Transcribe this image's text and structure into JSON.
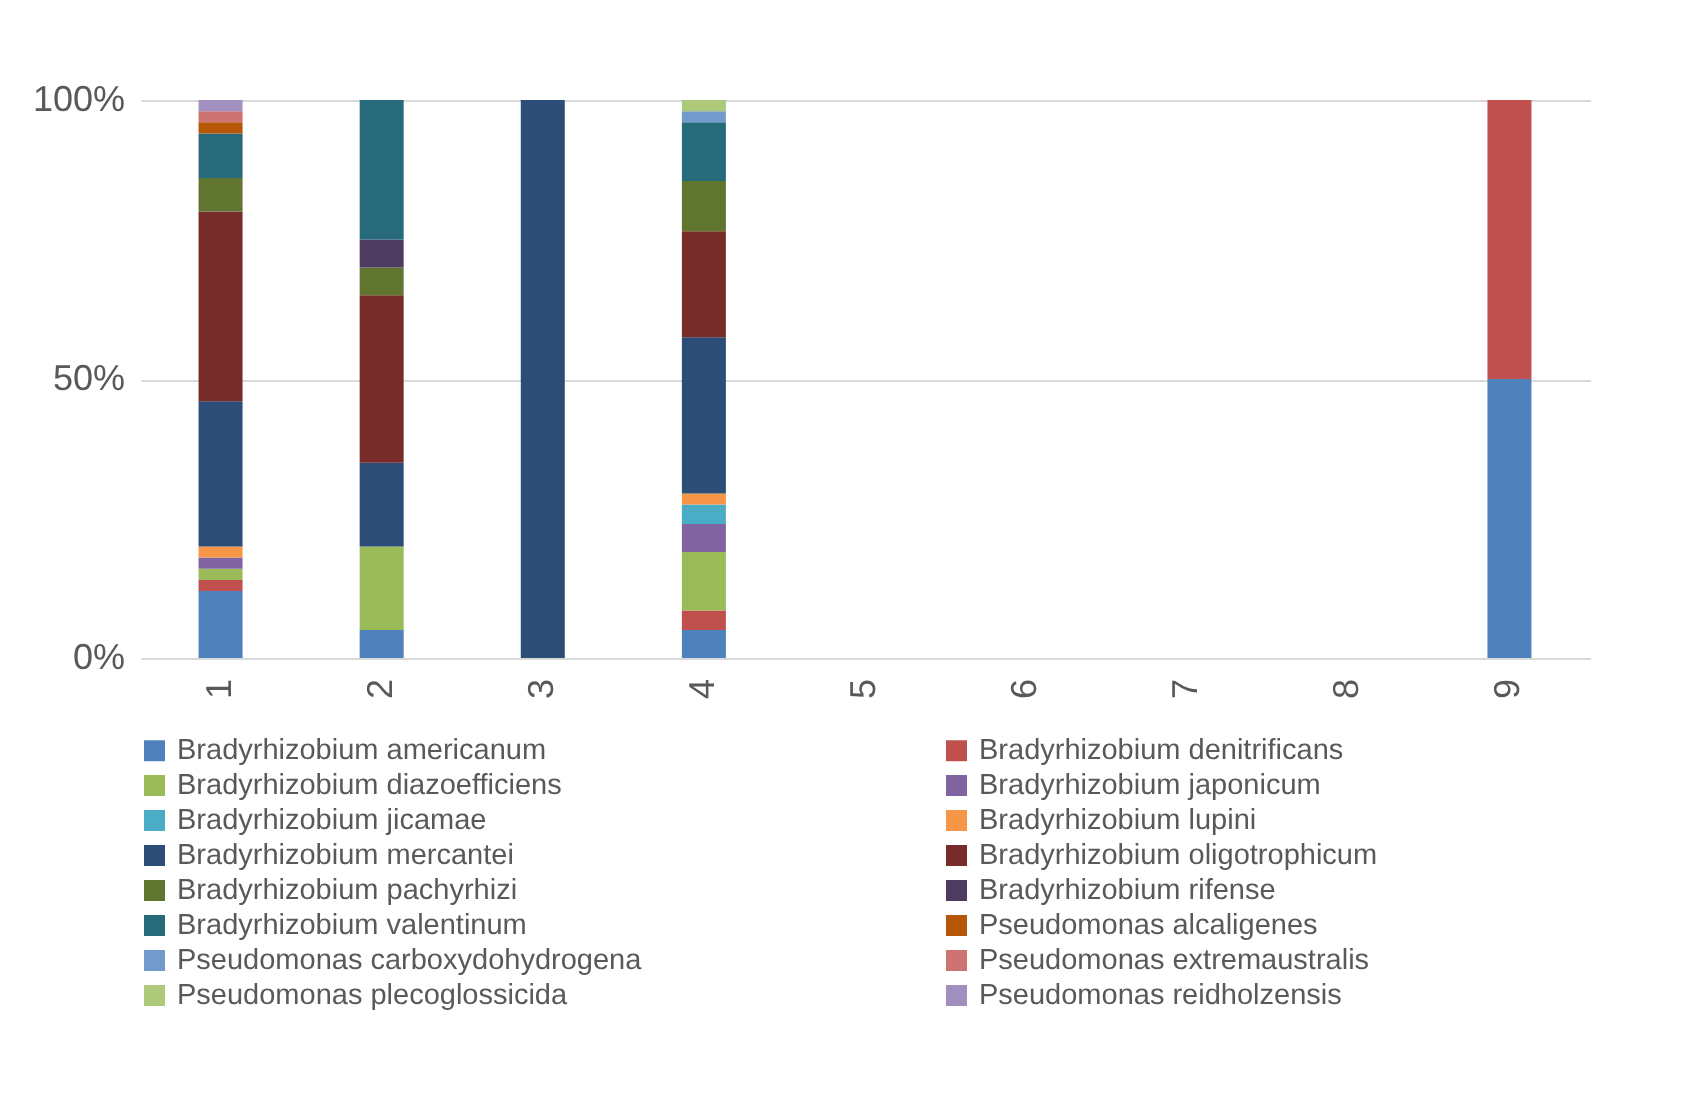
{
  "chart_data": {
    "type": "bar",
    "stacked": true,
    "categories": [
      "1",
      "2",
      "3",
      "4",
      "5",
      "6",
      "7",
      "8",
      "9"
    ],
    "ylim": [
      0,
      100
    ],
    "yticks": [
      {
        "value": 0,
        "label": "0%"
      },
      {
        "value": 50,
        "label": "50%"
      },
      {
        "value": 100,
        "label": "100%"
      }
    ],
    "grid": "y",
    "legend": "bottom",
    "series": [
      {
        "name": "Bradyrhizobium americanum",
        "color": "#4f81bd",
        "values": [
          12,
          5,
          0,
          5,
          null,
          null,
          null,
          null,
          50
        ]
      },
      {
        "name": "Bradyrhizobium denitrificans",
        "color": "#c0504d",
        "values": [
          2,
          0,
          0,
          3.5,
          null,
          null,
          null,
          null,
          50
        ]
      },
      {
        "name": "Bradyrhizobium diazoefficiens",
        "color": "#9bbb59",
        "values": [
          2,
          15,
          0,
          10.5,
          null,
          null,
          null,
          null,
          0
        ]
      },
      {
        "name": "Bradyrhizobium japonicum",
        "color": "#8064a2",
        "values": [
          2,
          0,
          0,
          5,
          null,
          null,
          null,
          null,
          0
        ]
      },
      {
        "name": "Bradyrhizobium jicamae",
        "color": "#4bacc6",
        "values": [
          0,
          0,
          0,
          3.5,
          null,
          null,
          null,
          null,
          0
        ]
      },
      {
        "name": "Bradyrhizobium lupini",
        "color": "#f79646",
        "values": [
          2,
          0,
          0,
          2,
          null,
          null,
          null,
          null,
          0
        ]
      },
      {
        "name": "Bradyrhizobium mercantei",
        "color": "#2c4d75",
        "values": [
          26,
          15,
          100,
          28,
          null,
          null,
          null,
          null,
          0
        ]
      },
      {
        "name": "Bradyrhizobium oligotrophicum",
        "color": "#772c2a",
        "values": [
          34,
          30,
          0,
          19,
          null,
          null,
          null,
          null,
          0
        ]
      },
      {
        "name": "Bradyrhizobium pachyrhizi",
        "color": "#5f7530",
        "values": [
          6,
          5,
          0,
          9,
          null,
          null,
          null,
          null,
          0
        ]
      },
      {
        "name": "Bradyrhizobium rifense",
        "color": "#4d3b62",
        "values": [
          0,
          5,
          0,
          0,
          null,
          null,
          null,
          null,
          0
        ]
      },
      {
        "name": "Bradyrhizobium valentinum",
        "color": "#276a7c",
        "values": [
          8,
          25,
          0,
          10.5,
          null,
          null,
          null,
          null,
          0
        ]
      },
      {
        "name": "Pseudomonas alcaligenes",
        "color": "#b65708",
        "values": [
          2,
          0,
          0,
          0,
          null,
          null,
          null,
          null,
          0
        ]
      },
      {
        "name": "Pseudomonas carboxydohydrogena",
        "color": "#729aca",
        "values": [
          0,
          0,
          0,
          2,
          null,
          null,
          null,
          null,
          0
        ]
      },
      {
        "name": "Pseudomonas extremaustralis",
        "color": "#cd7371",
        "values": [
          2,
          0,
          0,
          0,
          null,
          null,
          null,
          null,
          0
        ]
      },
      {
        "name": "Pseudomonas plecoglossicida",
        "color": "#afc97a",
        "values": [
          0,
          0,
          0,
          2,
          null,
          null,
          null,
          null,
          0
        ]
      },
      {
        "name": "Pseudomonas reidholzensis",
        "color": "#a18fbf",
        "values": [
          2,
          0,
          0,
          0,
          null,
          null,
          null,
          null,
          0
        ]
      }
    ]
  }
}
